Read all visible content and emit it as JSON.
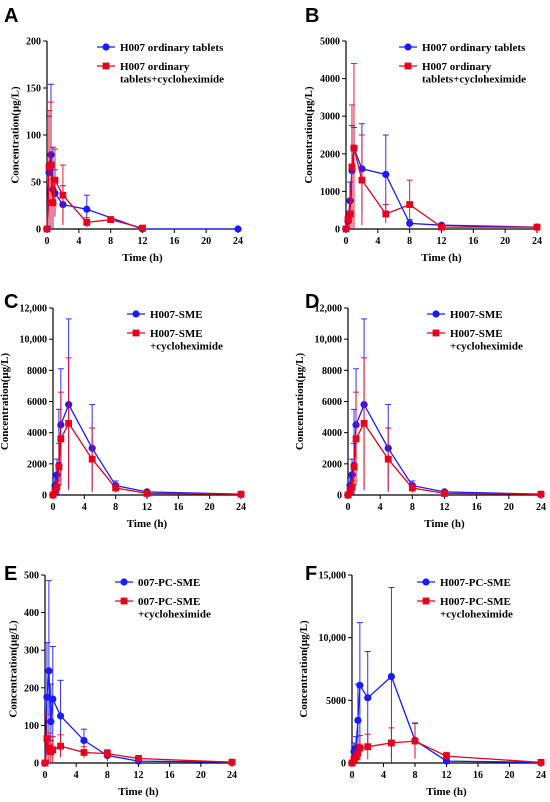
{
  "chart_data": [
    {
      "panel": "A",
      "type": "line",
      "xlabel": "Time (h)",
      "ylabel": "Concentration(μg/L)",
      "xlim": [
        0,
        24
      ],
      "ylim": [
        0,
        200
      ],
      "xticks": [
        "0",
        "4",
        "8",
        "12",
        "16",
        "20",
        "24"
      ],
      "yticks": [
        "0",
        "50",
        "100",
        "150",
        "200"
      ],
      "legend_position": "top-right",
      "series": [
        {
          "name": "H007 ordinary tablets",
          "color": "#1a1aff",
          "marker": "circle",
          "x": [
            0,
            0.25,
            0.5,
            0.75,
            1,
            2,
            5,
            12,
            24
          ],
          "y": [
            0,
            60,
            79,
            42,
            38,
            26,
            21,
            0,
            0
          ],
          "err": [
            0,
            60,
            75,
            45,
            25,
            20,
            15,
            0,
            0
          ]
        },
        {
          "name": "H007 ordinary tablets+cycloheximide",
          "color": "#e8001c",
          "marker": "square",
          "x": [
            0,
            0.25,
            0.5,
            0.75,
            1,
            2,
            5,
            8,
            12
          ],
          "y": [
            0,
            66,
            68,
            28,
            52,
            36,
            7,
            10,
            1
          ],
          "err": [
            0,
            60,
            67,
            25,
            33,
            32,
            5,
            3,
            1
          ]
        }
      ]
    },
    {
      "panel": "B",
      "type": "line",
      "xlabel": "Time (h)",
      "ylabel": "Concentration(μg/L)",
      "xlim": [
        0,
        24
      ],
      "ylim": [
        0,
        5000
      ],
      "xticks": [
        "0",
        "4",
        "8",
        "12",
        "16",
        "20",
        "24"
      ],
      "yticks": [
        "0",
        "1000",
        "2000",
        "3000",
        "4000",
        "5000"
      ],
      "legend_position": "top-right",
      "series": [
        {
          "name": "H007 ordinary tablets",
          "color": "#1a1aff",
          "marker": "circle",
          "x": [
            0,
            0.25,
            0.5,
            0.75,
            1,
            2,
            5,
            8,
            12,
            24
          ],
          "y": [
            0,
            200,
            750,
            1550,
            2150,
            1600,
            1450,
            150,
            100,
            50
          ],
          "err": [
            0,
            150,
            500,
            1200,
            550,
            1200,
            1050,
            100,
            50,
            30
          ]
        },
        {
          "name": "H007 ordinary tablets+cycloheximide",
          "color": "#e8001c",
          "marker": "square",
          "x": [
            0,
            0.25,
            0.5,
            0.75,
            1,
            2,
            5,
            8,
            12,
            24
          ],
          "y": [
            0,
            250,
            400,
            1650,
            2150,
            1300,
            400,
            650,
            50,
            50
          ],
          "err": [
            0,
            200,
            400,
            1650,
            2250,
            1200,
            250,
            650,
            50,
            30
          ]
        }
      ]
    },
    {
      "panel": "C",
      "type": "line",
      "xlabel": "Time (h)",
      "ylabel": "Concentration(μg/L)",
      "xlim": [
        0,
        24
      ],
      "ylim": [
        0,
        12000
      ],
      "xticks": [
        "0",
        "4",
        "8",
        "12",
        "16",
        "20",
        "24"
      ],
      "yticks": [
        "0",
        "2000",
        "4000",
        "6000",
        "8000",
        "10,000",
        "12,000"
      ],
      "legend_position": "top-right",
      "series": [
        {
          "name": "H007-SME",
          "color": "#1a1aff",
          "marker": "circle",
          "x": [
            0,
            0.25,
            0.5,
            0.75,
            1,
            2,
            5,
            8,
            12,
            24
          ],
          "y": [
            0,
            600,
            1300,
            1900,
            4500,
            5800,
            3000,
            600,
            200,
            50
          ],
          "err": [
            0,
            500,
            1000,
            3600,
            3600,
            5500,
            2800,
            300,
            100,
            50
          ]
        },
        {
          "name": "H007-SME +cycloheximide",
          "color": "#e8001c",
          "marker": "square",
          "x": [
            0,
            0.25,
            0.5,
            0.75,
            1,
            2,
            5,
            8,
            12,
            24
          ],
          "y": [
            0,
            250,
            500,
            1800,
            3600,
            4600,
            2300,
            450,
            100,
            50
          ],
          "err": [
            0,
            200,
            400,
            1500,
            3000,
            4200,
            2000,
            300,
            80,
            50
          ]
        }
      ]
    },
    {
      "panel": "D",
      "type": "line",
      "xlabel": "Time (h)",
      "ylabel": "Concentration(μg/L)",
      "xlim": [
        0,
        24
      ],
      "ylim": [
        0,
        12000
      ],
      "xticks": [
        "0",
        "4",
        "8",
        "12",
        "16",
        "20",
        "24"
      ],
      "yticks": [
        "0",
        "2000",
        "4000",
        "6000",
        "8000",
        "10,000",
        "12,000"
      ],
      "legend_position": "top-right",
      "series": [
        {
          "name": "H007-SME",
          "color": "#1a1aff",
          "marker": "circle",
          "x": [
            0,
            0.25,
            0.5,
            0.75,
            1,
            2,
            5,
            8,
            12,
            24
          ],
          "y": [
            0,
            600,
            1300,
            1900,
            4500,
            5800,
            3000,
            600,
            200,
            50
          ],
          "err": [
            0,
            500,
            1000,
            3600,
            3600,
            5500,
            2800,
            300,
            100,
            50
          ]
        },
        {
          "name": "H007-SME +cycloheximide",
          "color": "#e8001c",
          "marker": "square",
          "x": [
            0,
            0.25,
            0.5,
            0.75,
            1,
            2,
            5,
            8,
            12,
            24
          ],
          "y": [
            0,
            250,
            500,
            1800,
            3600,
            4600,
            2300,
            450,
            100,
            50
          ],
          "err": [
            0,
            200,
            400,
            1500,
            3000,
            4200,
            2000,
            300,
            80,
            50
          ]
        }
      ]
    },
    {
      "panel": "E",
      "type": "line",
      "xlabel": "Time (h)",
      "ylabel": "Concentration(μg/L)",
      "xlim": [
        0,
        24
      ],
      "ylim": [
        0,
        500
      ],
      "xticks": [
        "0",
        "4",
        "8",
        "12",
        "16",
        "20",
        "24"
      ],
      "yticks": [
        "0",
        "100",
        "200",
        "300",
        "400",
        "500"
      ],
      "legend_position": "top-right",
      "series": [
        {
          "name": "007-PC-SME",
          "color": "#1a1aff",
          "marker": "circle",
          "x": [
            0,
            0.25,
            0.5,
            0.75,
            1,
            2,
            5,
            8,
            12,
            24
          ],
          "y": [
            0,
            175,
            245,
            110,
            170,
            125,
            60,
            20,
            5,
            2
          ],
          "err": [
            0,
            145,
            240,
            100,
            140,
            95,
            30,
            15,
            5,
            2
          ]
        },
        {
          "name": "007-PC-SME +cycloheximide",
          "color": "#e8001c",
          "marker": "square",
          "x": [
            0,
            0.25,
            0.5,
            0.75,
            1,
            2,
            5,
            8,
            12,
            24
          ],
          "y": [
            0,
            65,
            40,
            30,
            35,
            45,
            28,
            25,
            12,
            2
          ],
          "err": [
            0,
            65,
            40,
            30,
            35,
            30,
            15,
            10,
            8,
            2
          ]
        }
      ]
    },
    {
      "panel": "F",
      "type": "line",
      "xlabel": "Time (h)",
      "ylabel": "Concentration(μg/L)",
      "xlim": [
        0,
        24
      ],
      "ylim": [
        0,
        15000
      ],
      "xticks": [
        "0",
        "4",
        "8",
        "12",
        "16",
        "20",
        "24"
      ],
      "yticks": [
        "0",
        "5000",
        "10,000",
        "15,000"
      ],
      "legend_position": "top-right",
      "series": [
        {
          "name": "H007-PC-SME",
          "color": "#1a1aff",
          "marker": "circle",
          "x": [
            0,
            0.25,
            0.5,
            0.75,
            1,
            2,
            5,
            8,
            12,
            24
          ],
          "y": [
            0,
            900,
            1200,
            3400,
            6200,
            5200,
            6900,
            1800,
            150,
            50
          ],
          "err": [
            0,
            700,
            900,
            2900,
            5000,
            3700,
            7100,
            1400,
            100,
            50
          ]
        },
        {
          "name": "H007-PC-SME +cycloheximide",
          "color": "#e8001c",
          "marker": "square",
          "x": [
            0,
            0.25,
            0.5,
            0.75,
            1,
            2,
            5,
            8,
            12,
            24
          ],
          "y": [
            0,
            300,
            500,
            800,
            1200,
            1300,
            1600,
            1750,
            550,
            50
          ],
          "err": [
            0,
            250,
            400,
            700,
            1000,
            1000,
            1200,
            1400,
            300,
            50
          ]
        }
      ]
    }
  ]
}
